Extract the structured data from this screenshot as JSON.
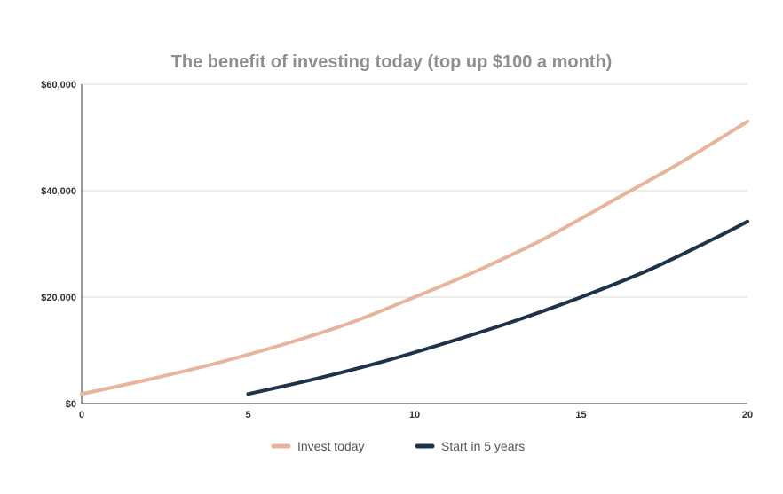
{
  "chart_data": {
    "type": "line",
    "title": "The benefit of investing today (top up $100 a month)",
    "xlabel": "",
    "ylabel": "",
    "xlim": [
      0,
      20
    ],
    "ylim": [
      0,
      60000
    ],
    "x_ticks": [
      0,
      5,
      10,
      15,
      20
    ],
    "y_ticks": [
      0,
      20000,
      40000,
      60000
    ],
    "y_tick_labels": [
      "$0",
      "$20,000",
      "$40,000",
      "$60,000"
    ],
    "grid": true,
    "legend_position": "bottom",
    "series": [
      {
        "name": "Invest today",
        "color": "#e8b49b",
        "x": [
          0,
          2,
          4,
          6,
          8,
          10,
          12,
          14,
          16,
          18,
          20
        ],
        "y": [
          1800,
          4500,
          7500,
          11000,
          15000,
          20000,
          25300,
          31300,
          38300,
          45300,
          53000
        ]
      },
      {
        "name": "Start in 5 years",
        "color": "#1c3349",
        "x": [
          5,
          7,
          9,
          11,
          13,
          15,
          17,
          19,
          20
        ],
        "y": [
          1800,
          4600,
          7800,
          11500,
          15500,
          20000,
          25000,
          31000,
          34200
        ]
      }
    ]
  }
}
